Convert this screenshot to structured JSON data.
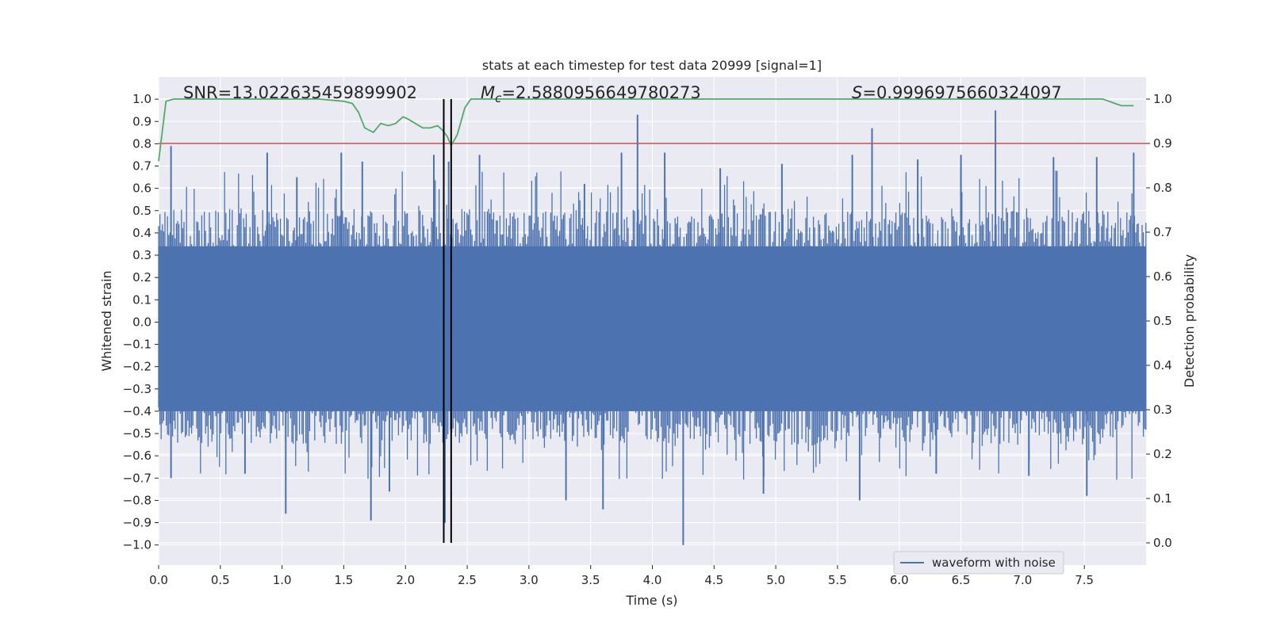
{
  "chart_data": {
    "type": "line",
    "title": "stats at each timestep for test data 20999 [signal=1]",
    "xlabel": "Time (s)",
    "ylabel": "Whitened strain",
    "y2label": "Detection probability",
    "xlim": [
      0.0,
      8.0
    ],
    "ylim": [
      -1.09,
      1.1
    ],
    "y2lim": [
      -0.05,
      1.05
    ],
    "x_ticks": [
      "0.0",
      "0.5",
      "1.0",
      "1.5",
      "2.0",
      "2.5",
      "3.0",
      "3.5",
      "4.0",
      "4.5",
      "5.0",
      "5.5",
      "6.0",
      "6.5",
      "7.0",
      "7.5"
    ],
    "y_ticks": [
      "1.0",
      "0.9",
      "0.8",
      "0.7",
      "0.6",
      "0.5",
      "0.4",
      "0.3",
      "0.2",
      "0.1",
      "0.0",
      "−0.1",
      "−0.2",
      "−0.3",
      "−0.4",
      "−0.5",
      "−0.6",
      "−0.7",
      "−0.8",
      "−0.9",
      "−1.0"
    ],
    "y2_ticks": [
      "1.0",
      "0.9",
      "0.8",
      "0.7",
      "0.6",
      "0.5",
      "0.4",
      "0.3",
      "0.2",
      "0.1",
      "0.0"
    ],
    "annotations": {
      "snr": "SNR=13.022635459899902",
      "mc_symbol": "M",
      "mc_sub": "c",
      "mc_value": "=2.5880956649780273",
      "s_symbol": "S",
      "s_value": "=0.9996975660324097"
    },
    "vertical_lines": [
      2.31,
      2.37
    ],
    "threshold": 0.9,
    "series": [
      {
        "name": "waveform with noise",
        "color": "#4c72b0",
        "description": "dense noisy strain, shown as envelope",
        "core_band": [
          -0.42,
          0.36
        ],
        "upper_spikes": [
          [
            0.1,
            0.79
          ],
          [
            0.88,
            0.76
          ],
          [
            1.12,
            0.65
          ],
          [
            1.48,
            0.76
          ],
          [
            1.65,
            0.72
          ],
          [
            2.23,
            0.75
          ],
          [
            2.35,
            0.72
          ],
          [
            2.6,
            0.75
          ],
          [
            3.45,
            0.62
          ],
          [
            3.75,
            0.76
          ],
          [
            3.88,
            0.93
          ],
          [
            4.1,
            0.76
          ],
          [
            4.55,
            0.69
          ],
          [
            5.05,
            0.71
          ],
          [
            5.62,
            0.75
          ],
          [
            5.78,
            0.87
          ],
          [
            6.15,
            0.73
          ],
          [
            6.5,
            0.75
          ],
          [
            6.78,
            0.95
          ],
          [
            7.25,
            0.74
          ],
          [
            7.6,
            0.74
          ],
          [
            7.9,
            0.76
          ]
        ],
        "lower_spikes": [
          [
            0.1,
            -0.7
          ],
          [
            1.03,
            -0.86
          ],
          [
            0.7,
            -0.68
          ],
          [
            1.72,
            -0.89
          ],
          [
            1.87,
            -0.76
          ],
          [
            2.32,
            -0.9
          ],
          [
            3.3,
            -0.8
          ],
          [
            3.6,
            -0.84
          ],
          [
            4.25,
            -1.0
          ],
          [
            4.9,
            -0.77
          ],
          [
            5.68,
            -0.8
          ],
          [
            7.52,
            -0.78
          ],
          [
            6.3,
            -0.68
          ],
          [
            7.05,
            -0.69
          ]
        ]
      },
      {
        "name": "detection probability",
        "color": "#55a868",
        "axis": "right",
        "x": [
          0.0,
          0.06,
          0.12,
          0.2,
          0.5,
          1.0,
          1.3,
          1.5,
          1.57,
          1.62,
          1.67,
          1.74,
          1.8,
          1.86,
          1.92,
          1.98,
          2.02,
          2.08,
          2.14,
          2.2,
          2.26,
          2.3,
          2.34,
          2.37,
          2.42,
          2.48,
          2.53,
          2.6,
          3.0,
          4.0,
          5.0,
          6.0,
          7.0,
          7.4,
          7.55,
          7.65,
          7.75,
          7.8,
          7.9
        ],
        "y": [
          0.86,
          0.995,
          1.0,
          1.0,
          1.0,
          1.0,
          1.0,
          0.995,
          0.99,
          0.97,
          0.935,
          0.925,
          0.945,
          0.94,
          0.945,
          0.96,
          0.955,
          0.945,
          0.935,
          0.935,
          0.94,
          0.93,
          0.915,
          0.895,
          0.92,
          0.98,
          1.0,
          1.0,
          1.0,
          1.0,
          1.0,
          1.0,
          1.0,
          1.0,
          1.0,
          1.0,
          0.99,
          0.985,
          0.985
        ]
      },
      {
        "name": "threshold",
        "color": "#c44e52",
        "axis": "right",
        "value": 0.9
      }
    ],
    "legend": [
      {
        "label": "waveform with noise",
        "color": "#4c72b0"
      }
    ],
    "legend_position": "lower-right"
  }
}
